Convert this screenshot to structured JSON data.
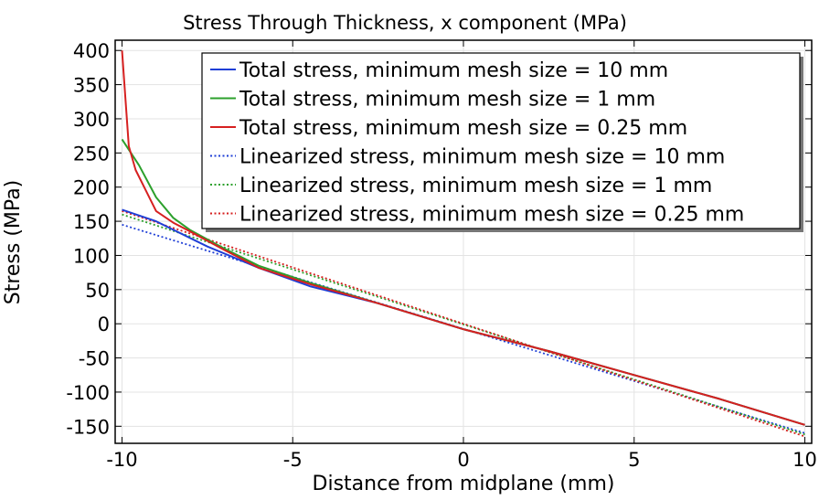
{
  "chart_data": {
    "type": "line",
    "title": "Stress Through Thickness, x component (MPa)",
    "xlabel": "Distance from midplane (mm)",
    "ylabel": "Stress (MPa)",
    "xlim": [
      -10.2,
      10.2
    ],
    "ylim": [
      -175,
      415
    ],
    "xticks": [
      -10,
      -5,
      0,
      5,
      10
    ],
    "xtick_labels": [
      "-10",
      "-5",
      "0",
      "5",
      "10"
    ],
    "yticks": [
      400,
      350,
      300,
      250,
      200,
      150,
      100,
      50,
      0,
      -50,
      -100,
      -150
    ],
    "ytick_labels": [
      "400",
      "350",
      "300",
      "250",
      "200",
      "150",
      "100",
      "50",
      "0",
      "-50",
      "-100",
      "-150"
    ],
    "grid": true,
    "legend_position": "top-right",
    "series": [
      {
        "name": "Total stress, minimum mesh size = 10 mm",
        "color": "#1f3fd6",
        "style": "solid",
        "x": [
          -10,
          -9,
          -7.5,
          -6,
          -4.5,
          -2.5,
          0,
          2.5,
          5,
          7.5,
          10
        ],
        "y": [
          167,
          150,
          113,
          82,
          55,
          30,
          -8,
          -40,
          -75,
          -110,
          -148
        ]
      },
      {
        "name": "Total stress, minimum mesh size = 1 mm",
        "color": "#2ca02c",
        "style": "solid",
        "x": [
          -10,
          -9.5,
          -9,
          -8.5,
          -8,
          -7,
          -6,
          -4.5,
          -2.5,
          0,
          2.5,
          5,
          7.5,
          10
        ],
        "y": [
          270,
          232,
          185,
          155,
          137,
          110,
          85,
          60,
          30,
          -8,
          -40,
          -75,
          -110,
          -148
        ]
      },
      {
        "name": "Total stress, minimum mesh size = 0.25 mm",
        "color": "#d62020",
        "style": "solid",
        "x": [
          -10,
          -9.8,
          -9.6,
          -9.3,
          -9,
          -8.5,
          -8,
          -7,
          -6,
          -4.5,
          -2.5,
          0,
          2.5,
          5,
          7.5,
          10
        ],
        "y": [
          400,
          260,
          225,
          195,
          165,
          148,
          135,
          108,
          82,
          58,
          30,
          -8,
          -40,
          -75,
          -110,
          -148
        ]
      },
      {
        "name": "Linearized stress, minimum mesh size = 10 mm",
        "color": "#1f3fd6",
        "style": "dotted",
        "x": [
          -10,
          10
        ],
        "y": [
          145,
          -160
        ]
      },
      {
        "name": "Linearized stress, minimum mesh size = 1 mm",
        "color": "#2ca02c",
        "style": "dotted",
        "x": [
          -10,
          10
        ],
        "y": [
          160,
          -162
        ]
      },
      {
        "name": "Linearized stress, minimum mesh size = 0.25 mm",
        "color": "#d62020",
        "style": "dotted",
        "x": [
          -10,
          10
        ],
        "y": [
          165,
          -165
        ]
      }
    ]
  }
}
